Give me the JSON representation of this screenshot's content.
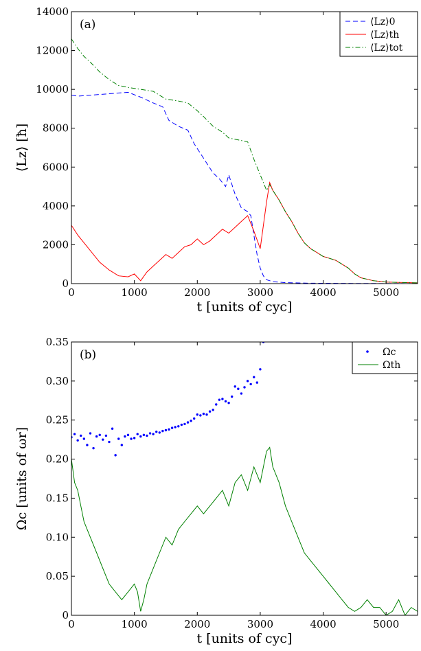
{
  "chart_data": [
    {
      "type": "line",
      "panel_label": "(a)",
      "xlabel": "t [units of cyc]",
      "ylabel": "⟨Lz⟩ [ħ]",
      "xlim": [
        0,
        5500
      ],
      "ylim": [
        0,
        14000
      ],
      "xticks": [
        0,
        1000,
        2000,
        3000,
        4000,
        5000
      ],
      "xtick_labels": [
        "0",
        "1000",
        "2000",
        "3000",
        "4000",
        "5000"
      ],
      "yticks": [
        0,
        2000,
        4000,
        6000,
        8000,
        10000,
        12000,
        14000
      ],
      "ytick_labels": [
        "0",
        "2000",
        "4000",
        "6000",
        "8000",
        "10000",
        "12000",
        "14000"
      ],
      "legend_position": "top-right",
      "series": [
        {
          "name": "⟨Lz⟩0",
          "color": "#0000ff",
          "style": "dashed",
          "x": [
            0,
            100,
            300,
            500,
            700,
            900,
            1100,
            1300,
            1450,
            1550,
            1700,
            1850,
            1950,
            2050,
            2150,
            2250,
            2350,
            2450,
            2500,
            2600,
            2700,
            2800,
            2850,
            2900,
            2950,
            3000,
            3050,
            3100,
            3200,
            3400,
            3800,
            4500,
            5500
          ],
          "y": [
            9700,
            9650,
            9700,
            9750,
            9800,
            9850,
            9600,
            9300,
            9100,
            8400,
            8100,
            7900,
            7200,
            6700,
            6200,
            5700,
            5400,
            5000,
            5600,
            4600,
            3900,
            3700,
            3500,
            2500,
            1500,
            800,
            400,
            200,
            100,
            50,
            20,
            10,
            0
          ]
        },
        {
          "name": "⟨Lz⟩th",
          "color": "#ff0000",
          "style": "solid",
          "x": [
            0,
            100,
            200,
            300,
            450,
            600,
            750,
            900,
            1000,
            1100,
            1200,
            1300,
            1400,
            1500,
            1600,
            1700,
            1800,
            1900,
            2000,
            2100,
            2200,
            2300,
            2400,
            2500,
            2600,
            2700,
            2800,
            2900,
            3000,
            3100,
            3150,
            3200,
            3300,
            3400,
            3500,
            3600,
            3700,
            3800,
            3900,
            4000,
            4100,
            4200,
            4300,
            4400,
            4500,
            4600,
            4800,
            5000,
            5200,
            5500
          ],
          "y": [
            3000,
            2500,
            2100,
            1700,
            1100,
            700,
            400,
            350,
            500,
            150,
            600,
            900,
            1200,
            1500,
            1300,
            1600,
            1900,
            2000,
            2300,
            2000,
            2200,
            2500,
            2800,
            2600,
            2900,
            3200,
            3500,
            2700,
            1800,
            4200,
            5200,
            4800,
            4300,
            3700,
            3200,
            2600,
            2100,
            1800,
            1600,
            1400,
            1300,
            1200,
            1000,
            800,
            500,
            300,
            150,
            80,
            60,
            40
          ]
        },
        {
          "name": "⟨Lz⟩tot",
          "color": "#008000",
          "style": "dashdot",
          "x": [
            0,
            100,
            200,
            300,
            450,
            600,
            750,
            900,
            1100,
            1300,
            1500,
            1700,
            1850,
            2000,
            2100,
            2250,
            2400,
            2500,
            2650,
            2800,
            2900,
            3000,
            3100,
            3150,
            3200,
            3300,
            3400,
            3500,
            3600,
            3700,
            3800,
            3900,
            4000,
            4100,
            4200,
            4300,
            4400,
            4500,
            4600,
            4800,
            5000,
            5200,
            5500
          ],
          "y": [
            12600,
            12100,
            11700,
            11400,
            10900,
            10500,
            10200,
            10100,
            10000,
            9900,
            9500,
            9400,
            9300,
            8900,
            8600,
            8100,
            7800,
            7500,
            7400,
            7300,
            6400,
            5600,
            4800,
            5100,
            4800,
            4300,
            3700,
            3200,
            2600,
            2100,
            1800,
            1600,
            1400,
            1300,
            1200,
            1000,
            800,
            500,
            300,
            150,
            80,
            60,
            40
          ]
        }
      ]
    },
    {
      "type": "line",
      "panel_label": "(b)",
      "xlabel": "t [units of cyc]",
      "ylabel": "Ωc [units of ωr]",
      "xlim": [
        0,
        5500
      ],
      "ylim": [
        0,
        0.35
      ],
      "xticks": [
        0,
        1000,
        2000,
        3000,
        4000,
        5000
      ],
      "xtick_labels": [
        "0",
        "1000",
        "2000",
        "3000",
        "4000",
        "5000"
      ],
      "yticks": [
        0,
        0.05,
        0.1,
        0.15,
        0.2,
        0.25,
        0.3,
        0.35
      ],
      "ytick_labels": [
        "0",
        "0.05",
        "0.10",
        "0.15",
        "0.20",
        "0.25",
        "0.30",
        "0.35"
      ],
      "legend_position": "top-right",
      "series": [
        {
          "name": "Ωc",
          "color": "#0000ff",
          "style": "dots",
          "x": [
            0,
            50,
            100,
            150,
            200,
            250,
            300,
            350,
            400,
            450,
            500,
            550,
            600,
            650,
            700,
            750,
            800,
            850,
            900,
            950,
            1000,
            1050,
            1100,
            1150,
            1200,
            1250,
            1300,
            1350,
            1400,
            1450,
            1500,
            1550,
            1600,
            1650,
            1700,
            1750,
            1800,
            1850,
            1900,
            1950,
            2000,
            2050,
            2100,
            2150,
            2200,
            2250,
            2300,
            2350,
            2400,
            2450,
            2500,
            2550,
            2600,
            2650,
            2700,
            2750,
            2800,
            2850,
            2900,
            2950,
            3000,
            3050
          ],
          "y": [
            0.228,
            0.232,
            0.224,
            0.23,
            0.226,
            0.218,
            0.233,
            0.214,
            0.229,
            0.231,
            0.225,
            0.23,
            0.222,
            0.239,
            0.205,
            0.226,
            0.218,
            0.229,
            0.231,
            0.226,
            0.227,
            0.232,
            0.229,
            0.231,
            0.23,
            0.233,
            0.232,
            0.235,
            0.234,
            0.236,
            0.237,
            0.238,
            0.24,
            0.241,
            0.242,
            0.244,
            0.245,
            0.247,
            0.249,
            0.252,
            0.257,
            0.256,
            0.258,
            0.257,
            0.261,
            0.263,
            0.27,
            0.276,
            0.277,
            0.274,
            0.272,
            0.28,
            0.293,
            0.29,
            0.284,
            0.292,
            0.3,
            0.296,
            0.305,
            0.298,
            0.315,
            0.35
          ]
        },
        {
          "name": "Ωth",
          "color": "#008000",
          "style": "solid",
          "x": [
            0,
            50,
            100,
            150,
            200,
            250,
            300,
            400,
            500,
            600,
            700,
            800,
            900,
            1000,
            1050,
            1100,
            1150,
            1200,
            1300,
            1400,
            1500,
            1600,
            1700,
            1800,
            1900,
            2000,
            2100,
            2200,
            2300,
            2400,
            2500,
            2600,
            2700,
            2800,
            2900,
            3000,
            3100,
            3150,
            3200,
            3300,
            3400,
            3500,
            3600,
            3700,
            3800,
            3900,
            4000,
            4100,
            4200,
            4300,
            4400,
            4500,
            4600,
            4700,
            4800,
            4900,
            5000,
            5100,
            5200,
            5300,
            5400,
            5500
          ],
          "y": [
            0.2,
            0.17,
            0.16,
            0.14,
            0.12,
            0.11,
            0.1,
            0.08,
            0.06,
            0.04,
            0.03,
            0.02,
            0.03,
            0.04,
            0.03,
            0.005,
            0.02,
            0.04,
            0.06,
            0.08,
            0.1,
            0.09,
            0.11,
            0.12,
            0.13,
            0.14,
            0.13,
            0.14,
            0.15,
            0.16,
            0.14,
            0.17,
            0.18,
            0.16,
            0.19,
            0.17,
            0.21,
            0.215,
            0.19,
            0.17,
            0.14,
            0.12,
            0.1,
            0.08,
            0.07,
            0.06,
            0.05,
            0.04,
            0.03,
            0.02,
            0.01,
            0.005,
            0.01,
            0.02,
            0.01,
            0.01,
            0.0,
            0.005,
            0.02,
            0.0,
            0.01,
            0.005
          ]
        }
      ]
    }
  ]
}
